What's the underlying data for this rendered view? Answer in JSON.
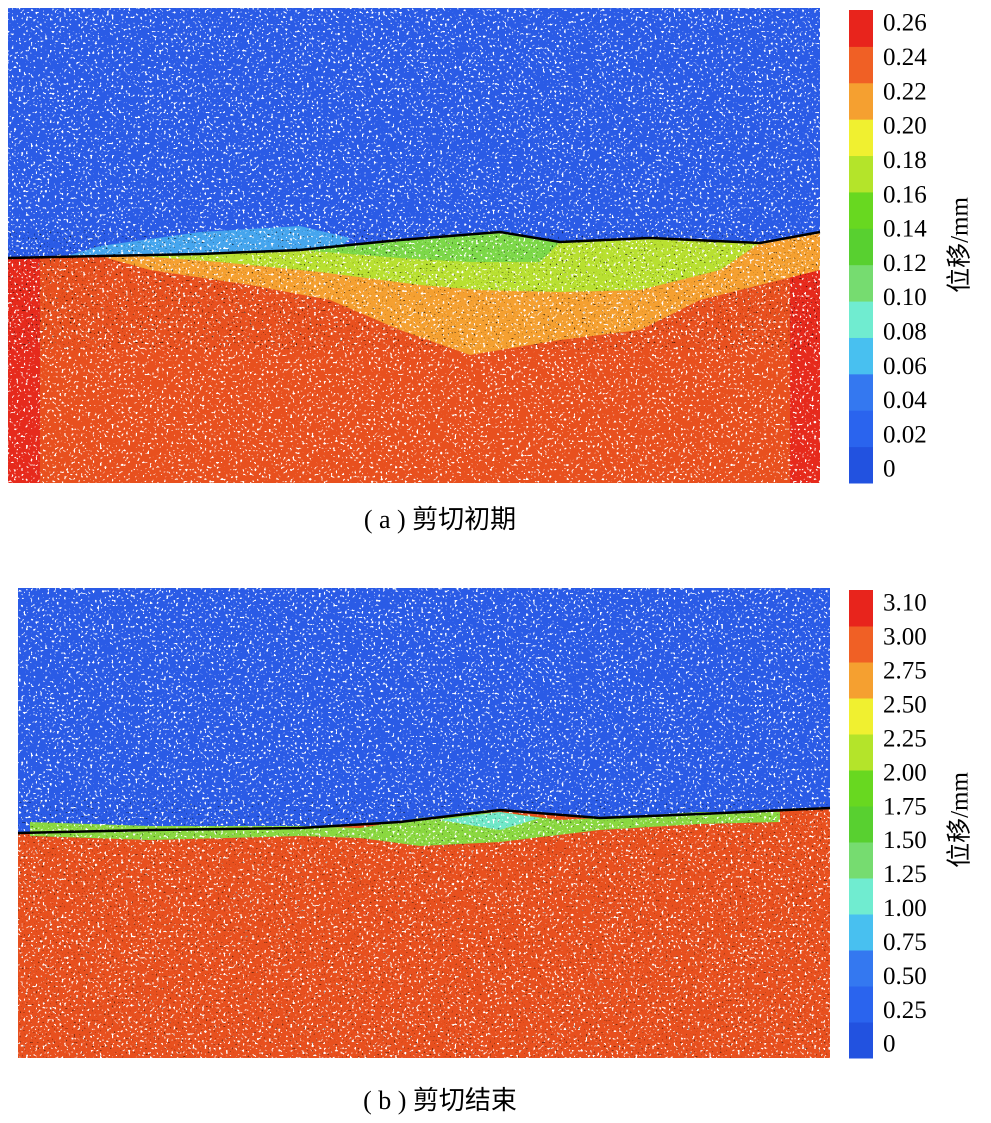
{
  "chart_data": [
    {
      "type": "contour",
      "title": "( a ) 剪切初期",
      "colorbar_label": "位移/mm",
      "cticks": [
        0,
        0.02,
        0.04,
        0.06,
        0.08,
        {
          "value": 0.1,
          "label": "0.10"
        },
        0.12,
        0.14,
        0.16,
        0.18,
        {
          "value": 0.2,
          "label": "0.20"
        },
        0.22,
        0.24,
        0.26
      ],
      "colors": [
        "#2252e0",
        "#2a64ee",
        "#3478f0",
        "#48c0f0",
        "#70ecd0",
        "#76dc70",
        "#58d030",
        "#68d820",
        "#b4e42a",
        "#f0f030",
        "#f5a030",
        "#f06025",
        "#e8241c"
      ]
    },
    {
      "type": "contour",
      "title": "( b ) 剪切结束",
      "colorbar_label": "位移/mm",
      "cticks": [
        0,
        0.25,
        {
          "value": 0.5,
          "label": "0.50"
        },
        0.75,
        {
          "value": 1,
          "label": "1.00"
        },
        1.25,
        {
          "value": 1.5,
          "label": "1.50"
        },
        1.75,
        {
          "value": 2,
          "label": "2.00"
        },
        2.25,
        {
          "value": 2.5,
          "label": "2.50"
        },
        2.75,
        {
          "value": 3,
          "label": "3.00"
        },
        {
          "value": 3.1,
          "label": "3.10"
        }
      ],
      "colors": [
        "#2252e0",
        "#2a64ee",
        "#3478f0",
        "#48c0f0",
        "#70ecd0",
        "#76dc70",
        "#58d030",
        "#68d820",
        "#b4e42a",
        "#f0f030",
        "#f5a030",
        "#f06025",
        "#e8241c"
      ]
    }
  ]
}
